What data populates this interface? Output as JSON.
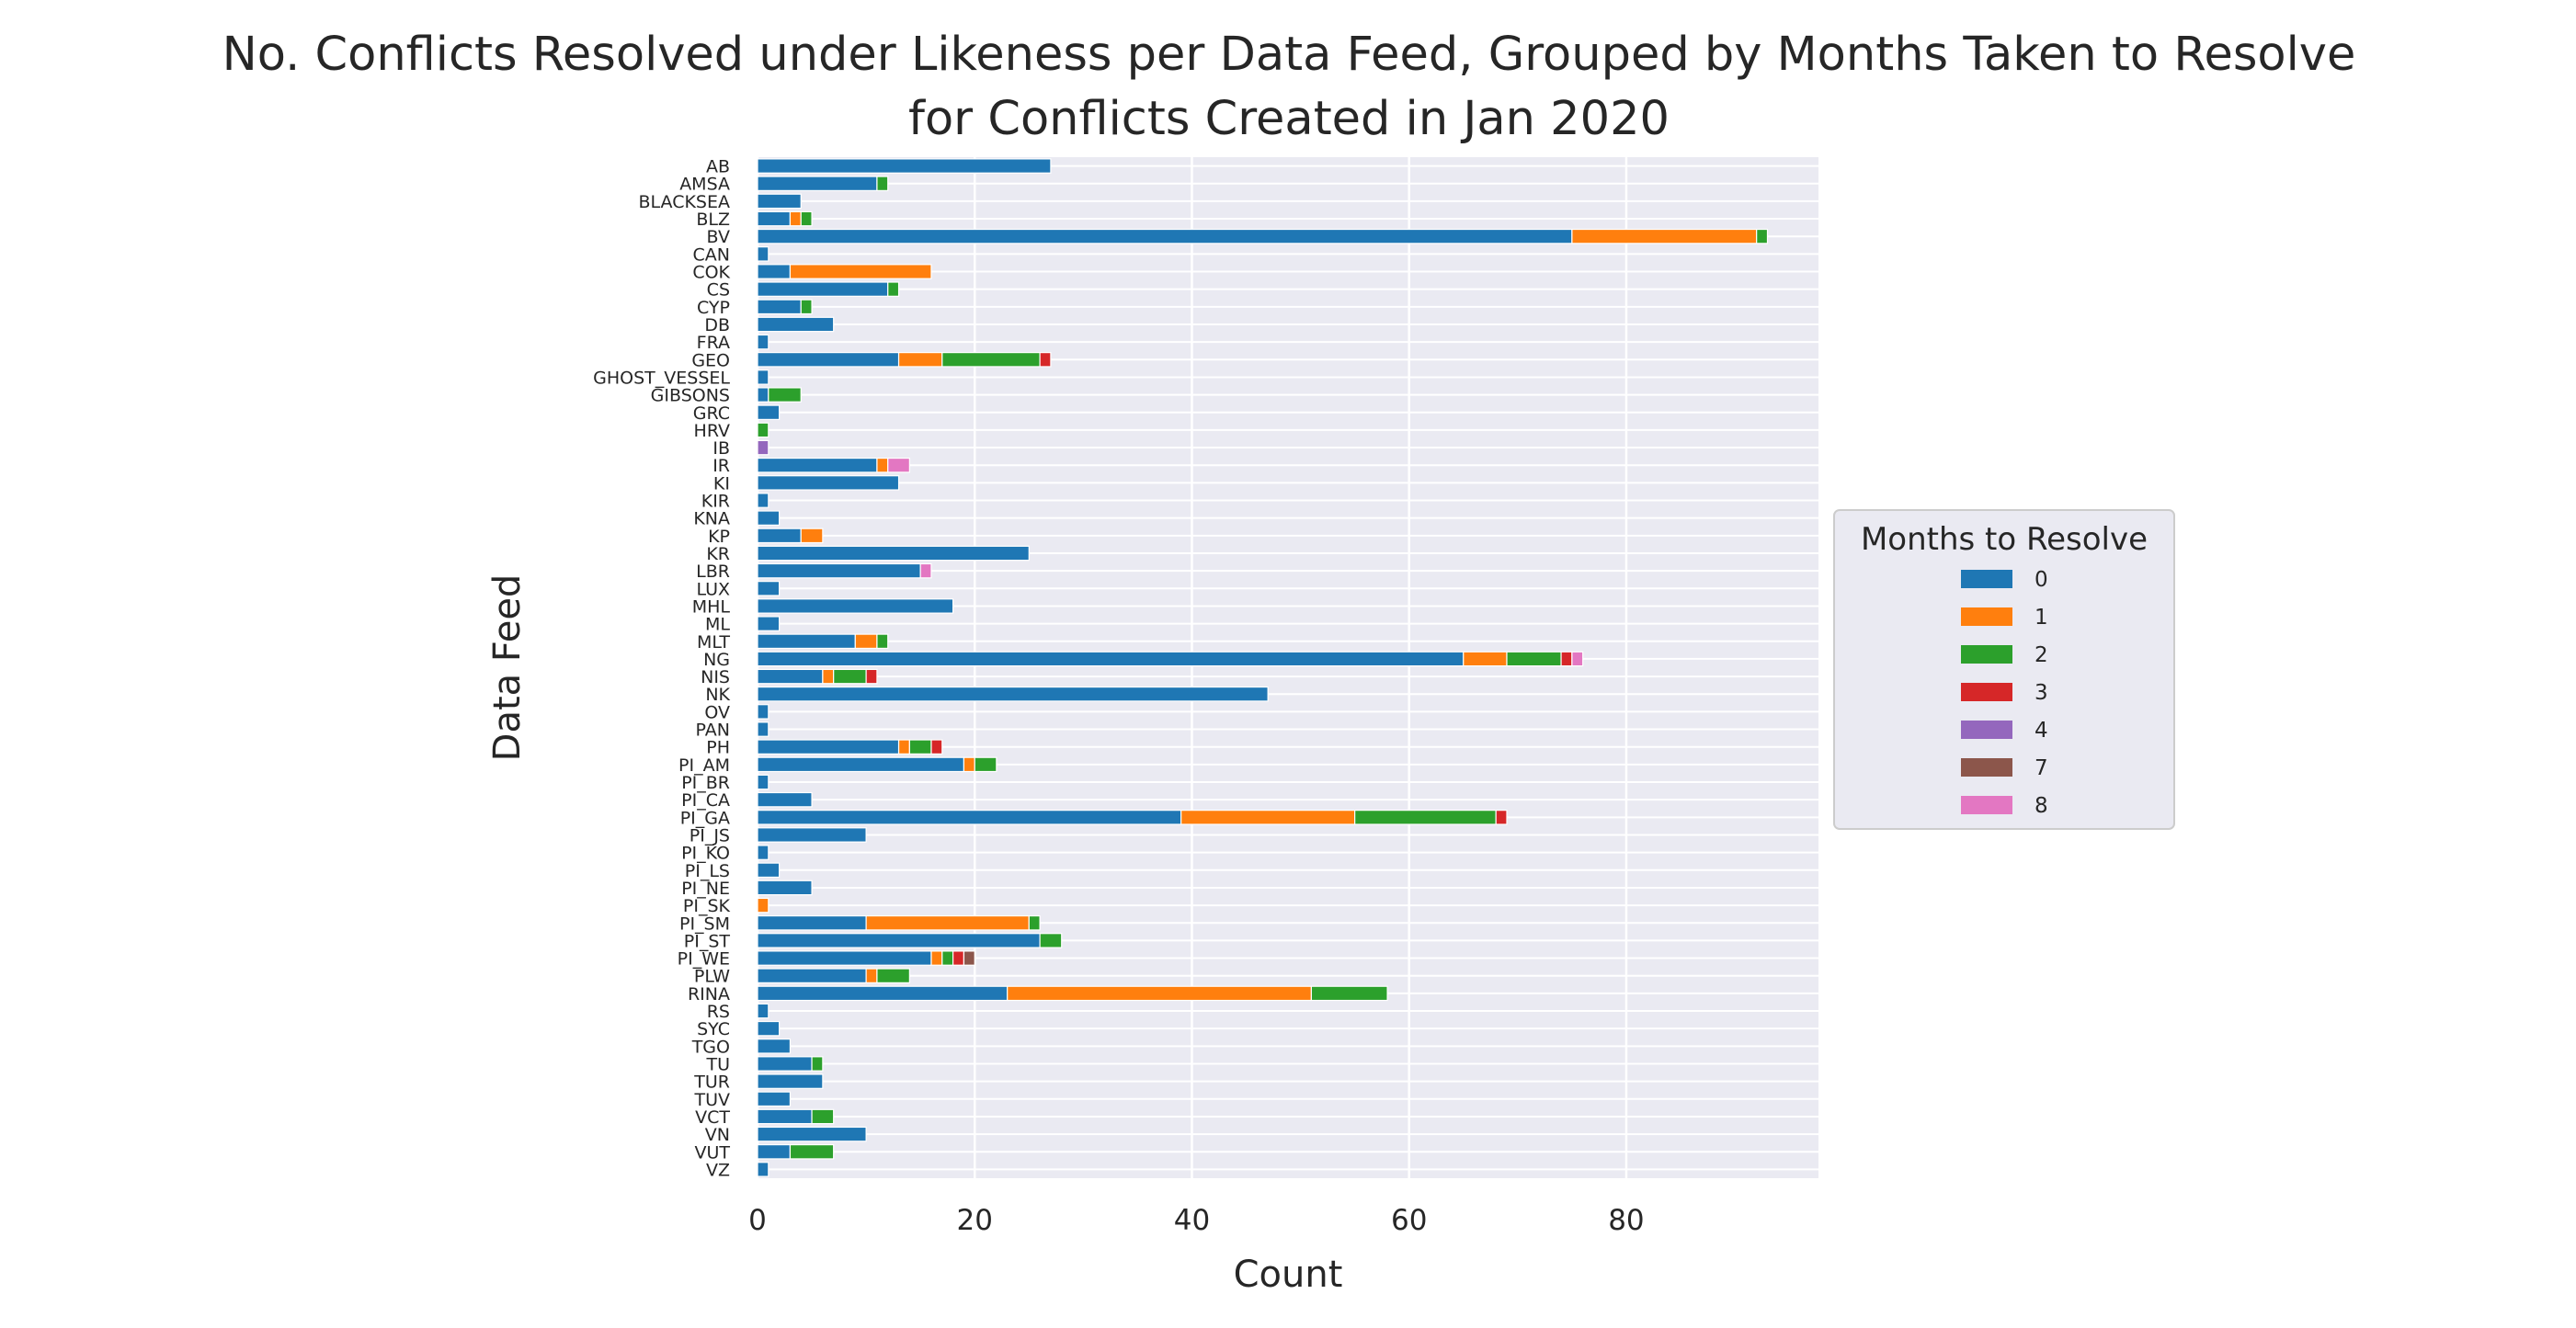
{
  "chart_data": {
    "type": "bar",
    "orientation": "horizontal",
    "stacked": true,
    "title": "No. Conflicts Resolved under Likeness per Data Feed, Grouped by Months Taken to Resolve\nfor Conflicts Created in Jan 2020",
    "xlabel": "Count",
    "ylabel": "Data Feed",
    "xlim": [
      0,
      97.7
    ],
    "xticks": [
      0,
      20,
      40,
      60,
      80
    ],
    "grid": true,
    "legend": {
      "title": "Months to Resolve",
      "position": "center-right-outside"
    },
    "categories": [
      "AB",
      "AMSA",
      "BLACKSEA",
      "BLZ",
      "BV",
      "CAN",
      "COK",
      "CS",
      "CYP",
      "DB",
      "FRA",
      "GEO",
      "GHOST_VESSEL",
      "GIBSONS",
      "GRC",
      "HRV",
      "IB",
      "IR",
      "KI",
      "KIR",
      "KNA",
      "KP",
      "KR",
      "LBR",
      "LUX",
      "MHL",
      "ML",
      "MLT",
      "NG",
      "NIS",
      "NK",
      "OV",
      "PAN",
      "PH",
      "PI_AM",
      "PI_BR",
      "PI_CA",
      "PI_GA",
      "PI_JS",
      "PI_KO",
      "PI_LS",
      "PI_NE",
      "PI_SK",
      "PI_SM",
      "PI_ST",
      "PI_WE",
      "PLW",
      "RINA",
      "RS",
      "SYC",
      "TGO",
      "TU",
      "TUR",
      "TUV",
      "VCT",
      "VN",
      "VUT",
      "VZ"
    ],
    "series": [
      {
        "name": "0",
        "color": "#1f77b4",
        "values": [
          27,
          11,
          4,
          3,
          75,
          1,
          3,
          12,
          4,
          7,
          1,
          13,
          1,
          1,
          2,
          0,
          0,
          11,
          13,
          1,
          2,
          4,
          25,
          15,
          2,
          18,
          2,
          9,
          65,
          6,
          47,
          1,
          1,
          13,
          19,
          1,
          5,
          39,
          10,
          1,
          2,
          5,
          0,
          10,
          26,
          16,
          10,
          23,
          1,
          2,
          3,
          5,
          6,
          3,
          5,
          10,
          3,
          1
        ]
      },
      {
        "name": "1",
        "color": "#ff7f0e",
        "values": [
          0,
          0,
          0,
          1,
          17,
          0,
          13,
          0,
          0,
          0,
          0,
          4,
          0,
          0,
          0,
          0,
          0,
          1,
          0,
          0,
          0,
          2,
          0,
          0,
          0,
          0,
          0,
          2,
          4,
          1,
          0,
          0,
          0,
          1,
          1,
          0,
          0,
          16,
          0,
          0,
          0,
          0,
          1,
          15,
          0,
          1,
          1,
          28,
          0,
          0,
          0,
          0,
          0,
          0,
          0,
          0,
          0,
          0
        ]
      },
      {
        "name": "2",
        "color": "#2ca02c",
        "values": [
          0,
          1,
          0,
          1,
          1,
          0,
          0,
          1,
          1,
          0,
          0,
          9,
          0,
          3,
          0,
          1,
          0,
          0,
          0,
          0,
          0,
          0,
          0,
          0,
          0,
          0,
          0,
          1,
          5,
          3,
          0,
          0,
          0,
          2,
          2,
          0,
          0,
          13,
          0,
          0,
          0,
          0,
          0,
          1,
          2,
          1,
          3,
          7,
          0,
          0,
          0,
          1,
          0,
          0,
          2,
          0,
          4,
          0
        ]
      },
      {
        "name": "3",
        "color": "#d62728",
        "values": [
          0,
          0,
          0,
          0,
          0,
          0,
          0,
          0,
          0,
          0,
          0,
          1,
          0,
          0,
          0,
          0,
          0,
          0,
          0,
          0,
          0,
          0,
          0,
          0,
          0,
          0,
          0,
          0,
          1,
          1,
          0,
          0,
          0,
          1,
          0,
          0,
          0,
          1,
          0,
          0,
          0,
          0,
          0,
          0,
          0,
          1,
          0,
          0,
          0,
          0,
          0,
          0,
          0,
          0,
          0,
          0,
          0,
          0
        ]
      },
      {
        "name": "4",
        "color": "#9467bd",
        "values": [
          0,
          0,
          0,
          0,
          0,
          0,
          0,
          0,
          0,
          0,
          0,
          0,
          0,
          0,
          0,
          0,
          1,
          0,
          0,
          0,
          0,
          0,
          0,
          0,
          0,
          0,
          0,
          0,
          0,
          0,
          0,
          0,
          0,
          0,
          0,
          0,
          0,
          0,
          0,
          0,
          0,
          0,
          0,
          0,
          0,
          0,
          0,
          0,
          0,
          0,
          0,
          0,
          0,
          0,
          0,
          0,
          0,
          0
        ]
      },
      {
        "name": "7",
        "color": "#8c564b",
        "values": [
          0,
          0,
          0,
          0,
          0,
          0,
          0,
          0,
          0,
          0,
          0,
          0,
          0,
          0,
          0,
          0,
          0,
          0,
          0,
          0,
          0,
          0,
          0,
          0,
          0,
          0,
          0,
          0,
          0,
          0,
          0,
          0,
          0,
          0,
          0,
          0,
          0,
          0,
          0,
          0,
          0,
          0,
          0,
          0,
          0,
          1,
          0,
          0,
          0,
          0,
          0,
          0,
          0,
          0,
          0,
          0,
          0,
          0
        ]
      },
      {
        "name": "8",
        "color": "#e377c2",
        "values": [
          0,
          0,
          0,
          0,
          0,
          0,
          0,
          0,
          0,
          0,
          0,
          0,
          0,
          0,
          0,
          0,
          0,
          2,
          0,
          0,
          0,
          0,
          0,
          1,
          0,
          0,
          0,
          0,
          1,
          0,
          0,
          0,
          0,
          0,
          0,
          0,
          0,
          0,
          0,
          0,
          0,
          0,
          0,
          0,
          0,
          0,
          0,
          0,
          0,
          0,
          0,
          0,
          0,
          0,
          0,
          0,
          0,
          0
        ]
      }
    ],
    "colors": {
      "background": "#eaeaf2",
      "grid": "#ffffff",
      "legend_bg": "#eaeaf2",
      "legend_border": "#cccccc"
    }
  }
}
